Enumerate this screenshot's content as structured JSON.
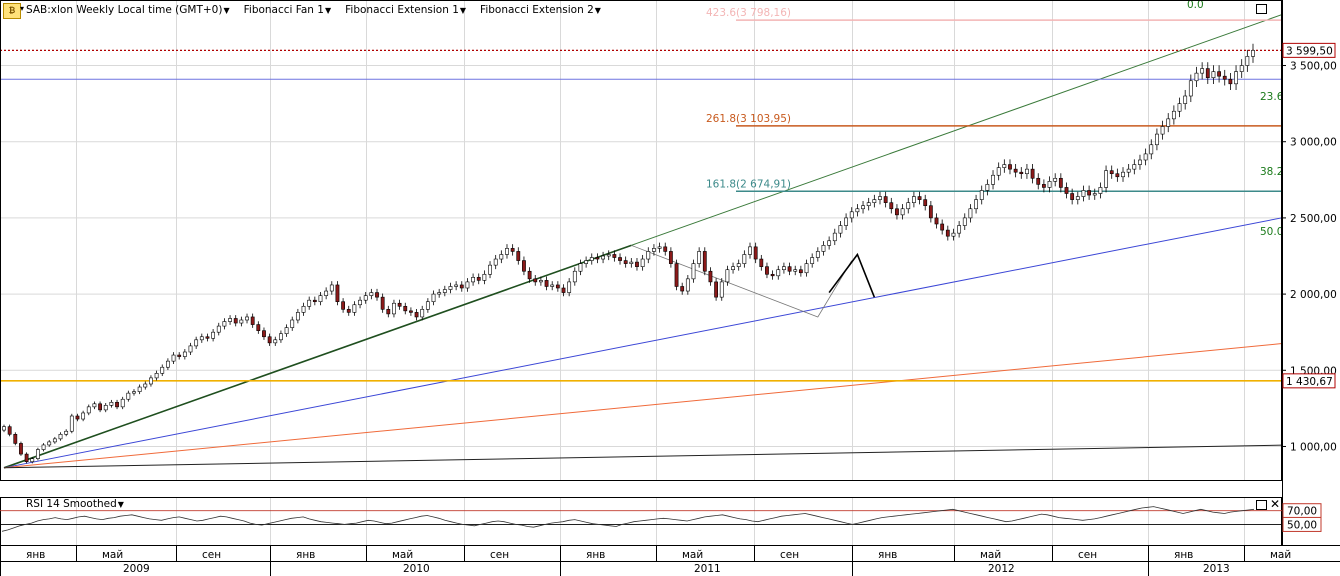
{
  "header": {
    "logo": "₿",
    "symbol": "SAB:xlon Weekly Local time (GMT+0)",
    "indicators": [
      "Fibonacci Fan 1",
      "Fibonacci Extension 1",
      "Fibonacci Extension 2"
    ]
  },
  "rsi_panel": {
    "title": "RSI 14 Smoothed"
  },
  "colors": {
    "up": "#ffffff",
    "down": "#8b1a1a",
    "wick": "#000000",
    "grid": "#d9d9d9",
    "fan_green": "#3a7a3a",
    "fan_blue": "#3b46d6",
    "fan_orange": "#f06a3a",
    "fan_black": "#222222",
    "ext_pink": "#f3b5b5",
    "ext_orange": "#c85a1e",
    "ext_teal": "#3c8a8a",
    "level_gold": "#f0b000"
  },
  "chart_data": {
    "type": "candlestick",
    "title": "SAB:xlon Weekly",
    "ylim": [
      780,
      3930
    ],
    "yticks": [
      "1 000,00",
      "1 500,00",
      "2 000,00",
      "2 500,00",
      "3 000,00",
      "3 500,00"
    ],
    "ytick_values": [
      1000,
      1500,
      2000,
      2500,
      3000,
      3500
    ],
    "x_months": [
      "янв",
      "май",
      "сен",
      "янв",
      "май",
      "сен",
      "янв",
      "май",
      "сен",
      "янв",
      "май",
      "сен",
      "янв",
      "май"
    ],
    "x_years": [
      "2009",
      "2010",
      "2011",
      "2012",
      "2013"
    ],
    "last_price": {
      "label": "3 599,50",
      "value": 3599.5
    },
    "horizontal_level": {
      "label": "1 430,67",
      "value": 1430.67
    },
    "blue_level": 3410,
    "fib_extension_levels": [
      {
        "label": "423.6(3 798,16)",
        "value": 3798.16,
        "color": "#f3b5b5"
      },
      {
        "label": "261.8(3 103,95)",
        "value": 3103.95,
        "color": "#c85a1e"
      },
      {
        "label": "161.8(2 674,91)",
        "value": 2674.91,
        "color": "#3c8a8a"
      }
    ],
    "fan_labels": [
      "0.0",
      "23.6",
      "38.2",
      "50.0"
    ],
    "weekly_closes": [
      1130,
      1080,
      1020,
      950,
      900,
      920,
      980,
      1010,
      1030,
      1050,
      1080,
      1100,
      1200,
      1180,
      1220,
      1260,
      1280,
      1240,
      1270,
      1290,
      1260,
      1310,
      1350,
      1360,
      1390,
      1410,
      1450,
      1480,
      1520,
      1560,
      1600,
      1590,
      1620,
      1660,
      1700,
      1720,
      1710,
      1750,
      1790,
      1820,
      1840,
      1810,
      1830,
      1850,
      1800,
      1760,
      1720,
      1680,
      1700,
      1740,
      1780,
      1830,
      1880,
      1920,
      1960,
      1950,
      1990,
      2020,
      2060,
      1950,
      1900,
      1880,
      1930,
      1960,
      1990,
      2010,
      1980,
      1900,
      1870,
      1940,
      1920,
      1890,
      1880,
      1850,
      1900,
      1950,
      2000,
      2010,
      2030,
      2050,
      2060,
      2040,
      2080,
      2110,
      2090,
      2130,
      2190,
      2230,
      2260,
      2300,
      2280,
      2220,
      2150,
      2100,
      2080,
      2090,
      2050,
      2060,
      2040,
      2010,
      2080,
      2150,
      2200,
      2220,
      2240,
      2230,
      2250,
      2260,
      2240,
      2220,
      2200,
      2210,
      2180,
      2230,
      2280,
      2300,
      2310,
      2280,
      2200,
      2050,
      2020,
      2100,
      2200,
      2280,
      2150,
      2080,
      1980,
      2080,
      2160,
      2180,
      2200,
      2260,
      2310,
      2230,
      2180,
      2130,
      2120,
      2160,
      2180,
      2150,
      2160,
      2140,
      2200,
      2240,
      2280,
      2320,
      2350,
      2400,
      2450,
      2500,
      2540,
      2560,
      2580,
      2600,
      2620,
      2640,
      2600,
      2560,
      2520,
      2560,
      2600,
      2640,
      2620,
      2580,
      2500,
      2460,
      2420,
      2380,
      2400,
      2450,
      2500,
      2560,
      2620,
      2680,
      2720,
      2780,
      2830,
      2850,
      2820,
      2800,
      2790,
      2820,
      2760,
      2720,
      2700,
      2740,
      2760,
      2700,
      2660,
      2620,
      2640,
      2680,
      2650,
      2660,
      2700,
      2810,
      2790,
      2770,
      2800,
      2820,
      2850,
      2880,
      2920,
      2980,
      3050,
      3100,
      3150,
      3200,
      3250,
      3300,
      3400,
      3450,
      3480,
      3420,
      3460,
      3430,
      3410,
      3380,
      3460,
      3500,
      3560,
      3599.5
    ],
    "fib_fan": {
      "origin": [
        0,
        860
      ],
      "through": [
        111,
        2320
      ],
      "levels": [
        "0.0",
        "23.6",
        "38.2",
        "50.0"
      ]
    },
    "zigzag_ext1": [
      [
        111,
        2320
      ],
      [
        144,
        1850
      ],
      [
        150,
        2220
      ]
    ],
    "zigzag_ext2": [
      [
        146,
        2010
      ],
      [
        151,
        2260
      ],
      [
        154,
        1980
      ]
    ],
    "rsi": {
      "name": "RSI 14 Smoothed",
      "levels": [
        {
          "label": "70,00",
          "value": 70
        },
        {
          "label": "50,00",
          "value": 50
        }
      ],
      "values": [
        40,
        42,
        45,
        48,
        50,
        52,
        55,
        57,
        58,
        60,
        58,
        57,
        59,
        61,
        62,
        60,
        58,
        57,
        59,
        60,
        62,
        63,
        64,
        62,
        60,
        58,
        57,
        56,
        58,
        60,
        61,
        59,
        57,
        55,
        56,
        58,
        60,
        62,
        61,
        59,
        57,
        55,
        52,
        50,
        49,
        51,
        53,
        55,
        57,
        59,
        60,
        61,
        58,
        56,
        54,
        53,
        52,
        51,
        50,
        51,
        52,
        54,
        56,
        55,
        53,
        51,
        52,
        54,
        56,
        58,
        60,
        62,
        63,
        61,
        59,
        56,
        54,
        52,
        50,
        49,
        48,
        50,
        52,
        54,
        55,
        54,
        52,
        50,
        49,
        47,
        46,
        48,
        50,
        52,
        53,
        54,
        56,
        57,
        55,
        53,
        51,
        50,
        49,
        48,
        47,
        50,
        52,
        54,
        55,
        56,
        57,
        58,
        59,
        58,
        57,
        56,
        55,
        57,
        59,
        61,
        62,
        63,
        64,
        62,
        60,
        58,
        57,
        55,
        54,
        56,
        58,
        60,
        62,
        63,
        64,
        65,
        66,
        64,
        62,
        60,
        58,
        56,
        54,
        52,
        50,
        52,
        54,
        56,
        58,
        60,
        61,
        62,
        63,
        64,
        65,
        66,
        67,
        68,
        69,
        70,
        71,
        72,
        70,
        68,
        66,
        64,
        62,
        60,
        58,
        56,
        54,
        55,
        57,
        59,
        61,
        63,
        65,
        64,
        62,
        60,
        59,
        58,
        57,
        56,
        57,
        58,
        60,
        62,
        64,
        66,
        68,
        70,
        72,
        74,
        75,
        76,
        74,
        72,
        70,
        68,
        66,
        68,
        70,
        72,
        70,
        68,
        67,
        66,
        68,
        69,
        70,
        71,
        72
      ]
    }
  }
}
